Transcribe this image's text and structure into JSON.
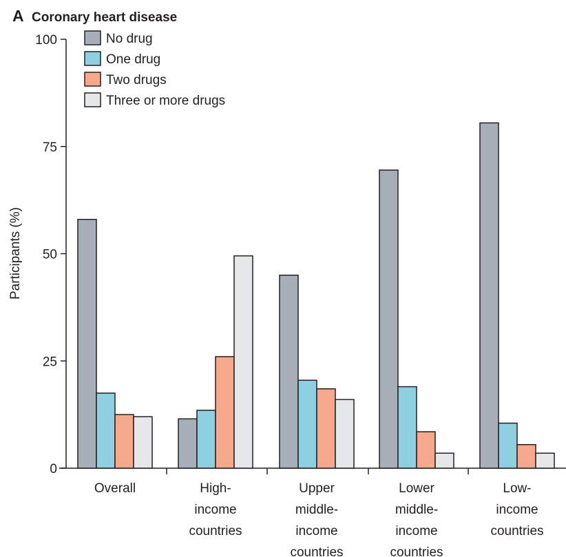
{
  "panel_letter": "A",
  "chart_data": {
    "type": "bar",
    "title": "Coronary heart disease",
    "ylabel": "Participants (%)",
    "xlabel": "",
    "ylim": [
      0,
      100
    ],
    "yticks": [
      0,
      25,
      50,
      75,
      100
    ],
    "grid": false,
    "legend_position": "top-left",
    "categories": [
      [
        "Overall"
      ],
      [
        "High-",
        "income",
        "countries"
      ],
      [
        "Upper",
        "middle-",
        "income",
        "countries"
      ],
      [
        "Lower",
        "middle-",
        "income",
        "countries"
      ],
      [
        "Low-",
        "income",
        "countries"
      ]
    ],
    "series": [
      {
        "name": "No drug",
        "color": "#a7b0b8",
        "values": [
          58,
          11.5,
          45,
          69.5,
          80.5
        ]
      },
      {
        "name": "One drug",
        "color": "#8fcfe2",
        "values": [
          17.5,
          13.5,
          20.5,
          19,
          10.5
        ]
      },
      {
        "name": "Two drugs",
        "color": "#f4a98d",
        "values": [
          12.5,
          26,
          18.5,
          8.5,
          5.5
        ]
      },
      {
        "name": "Three or more drugs",
        "color": "#e6e7e8",
        "values": [
          12,
          49.5,
          16,
          3.5,
          3.5
        ]
      }
    ]
  }
}
